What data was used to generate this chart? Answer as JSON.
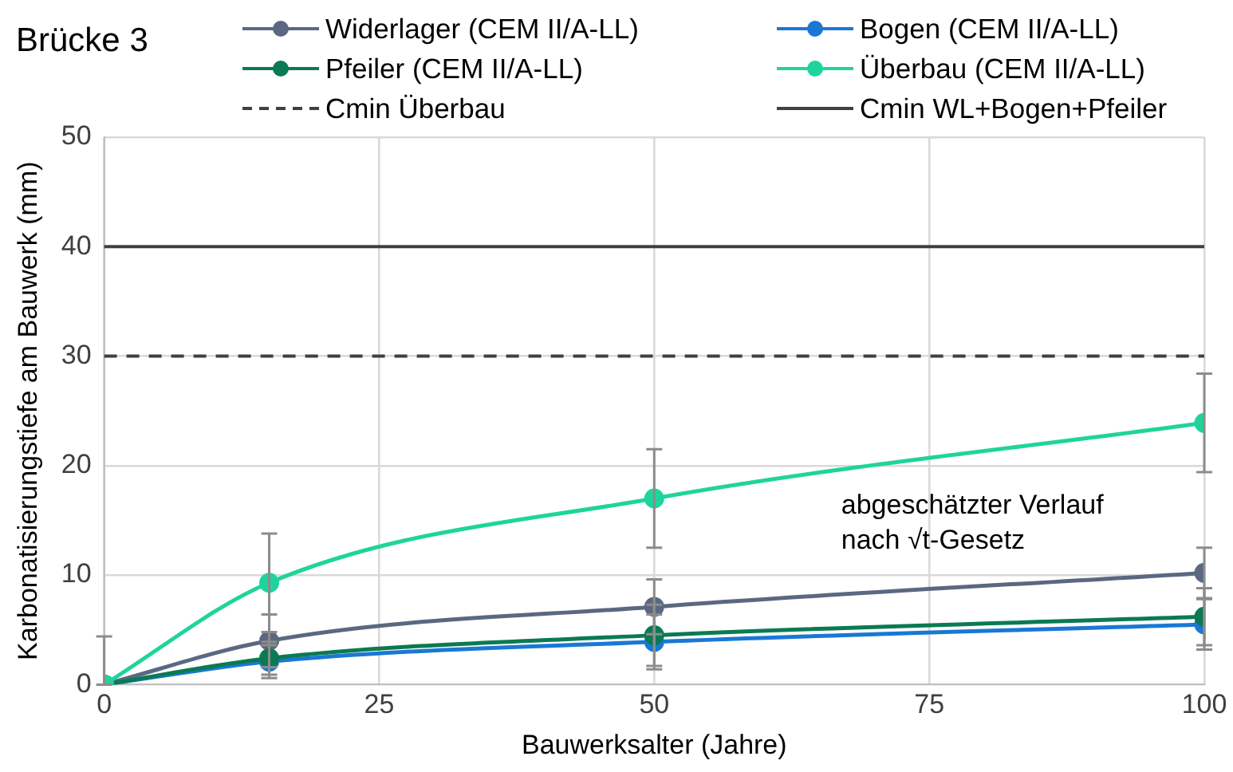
{
  "chart_data": {
    "type": "line",
    "title": "Brücke 3",
    "xlabel": "Bauwerksalter (Jahre)",
    "ylabel": "Karbonatisierungstiefe am Bauwerk (mm)",
    "x": [
      0,
      15,
      50,
      100
    ],
    "series": [
      {
        "name": "Widerlager (CEM II/A-LL)",
        "color": "#5a6882",
        "values": [
          0,
          4.0,
          7.1,
          10.2
        ],
        "errors": [
          [
            0,
            4.4
          ],
          2.4,
          2.5,
          2.3
        ]
      },
      {
        "name": "Bogen (CEM II/A-LL)",
        "color": "#1a78d4",
        "values": [
          0,
          2.1,
          3.9,
          5.5
        ],
        "errors": [
          null,
          1.5,
          2.5,
          2.3
        ]
      },
      {
        "name": "Pfeiler (CEM II/A-LL)",
        "color": "#0b7a52",
        "values": [
          0,
          2.4,
          4.5,
          6.2
        ],
        "errors": [
          null,
          1.5,
          2.8,
          2.6
        ]
      },
      {
        "name": "Überbau (CEM II/A-LL)",
        "color": "#1fd49c",
        "values": [
          0,
          9.3,
          17.0,
          23.9
        ],
        "errors": [
          null,
          4.5,
          4.5,
          4.5
        ]
      }
    ],
    "ref_lines": [
      {
        "axis": "y",
        "value": 30,
        "label": "Cmin Überbau",
        "color": "#404040",
        "line_style": "dashed"
      },
      {
        "axis": "y",
        "value": 40,
        "label": "Cmin WL+Bogen+Pfeiler",
        "color": "#404040",
        "line_style": "solid"
      }
    ],
    "annotations": [
      "abgeschätzter Verlauf nach √t-Gesetz"
    ],
    "xlim": [
      0,
      100
    ],
    "xticks": [
      0,
      25,
      50,
      75,
      100
    ],
    "ylim": [
      0,
      50
    ],
    "yticks": [
      0,
      10,
      20,
      30,
      40,
      50
    ],
    "grid": true,
    "legend": "top",
    "marker": "circle",
    "line_style": "solid"
  }
}
